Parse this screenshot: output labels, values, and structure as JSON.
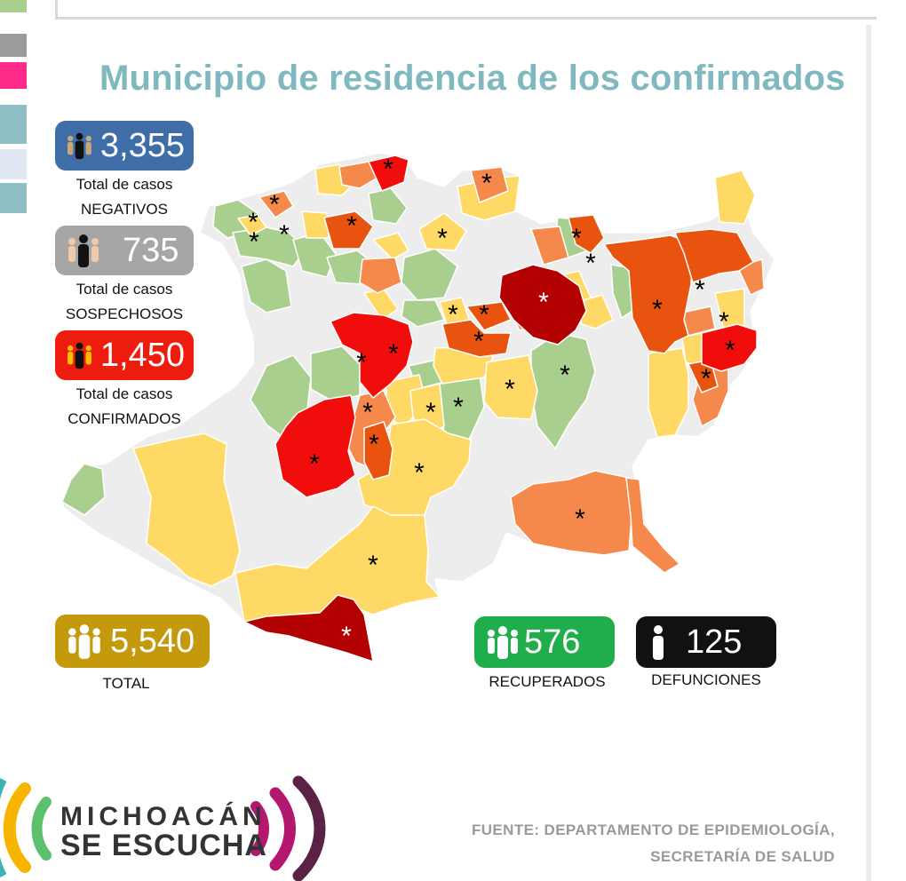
{
  "title": "Municipio de residencia de los confirmados",
  "stats": {
    "negativos": {
      "value": "3,355",
      "caption_line1": "Total de casos",
      "caption_line2": "NEGATIVOS",
      "color": "#3e6da7"
    },
    "sospechosos": {
      "value": "735",
      "caption_line1": "Total de casos",
      "caption_line2": "SOSPECHOSOS",
      "color": "#a6a6a6"
    },
    "confirmados": {
      "value": "1,450",
      "caption_line1": "Total de casos",
      "caption_line2": "CONFIRMADOS",
      "color": "#ee1c0f"
    },
    "total": {
      "value": "5,540",
      "caption": "TOTAL",
      "color": "#c49a0c"
    },
    "recuperados": {
      "value": "576",
      "caption": "RECUPERADOS",
      "color": "#1fae4b"
    },
    "defunciones": {
      "value": "125",
      "caption": "DEFUNCIONES",
      "color": "#111111"
    }
  },
  "map": {
    "marker": "*",
    "colors": {
      "none": "#ededed",
      "low": "#a9cf8e",
      "medium": "#ffd966",
      "high": "#f4894b",
      "higher": "#e8540f",
      "very_high": "#f20d0d",
      "highest": "#b30000",
      "border": "#ffffff"
    }
  },
  "logo": {
    "line1": "MICHOACÁN",
    "line2": "SE ESCUCHA",
    "accent_left": "#f7b500",
    "accent_mid": "#5cc06d",
    "accent_right": "#b3176e",
    "accent_dark": "#5a2346"
  },
  "source": {
    "line1": "FUENTE: DEPARTAMENTO DE EPIDEMIOLOGÍA,",
    "line2": "SECRETARÍA DE SALUD"
  },
  "left_strip_colors": [
    "#a9cf8e",
    "#9b9b9b",
    "#ff2a8a",
    "#8fbfc4",
    "#dfe8f3",
    "#8fbfc4"
  ]
}
